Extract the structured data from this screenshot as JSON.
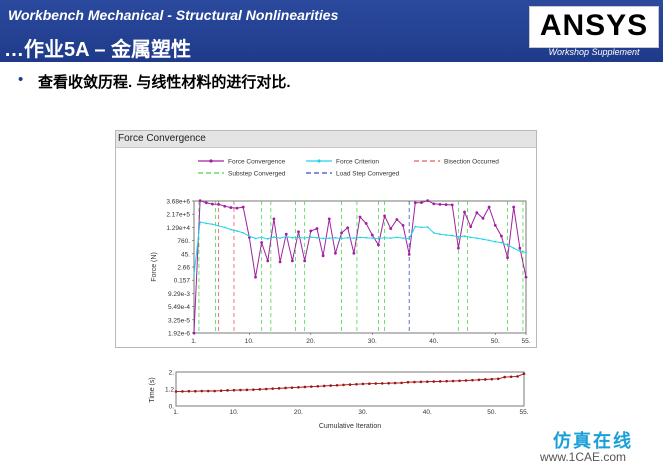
{
  "header": {
    "title_line1": "Workbench Mechanical -  Structural Nonlinearities",
    "title_line2": "…作业5A – 金属塑性",
    "logo": "ANSYS",
    "logo_sub": "Workshop Supplement"
  },
  "bullet": {
    "text": "查看收敛历程. 与线性材料的进行对比."
  },
  "panel": {
    "title": "Force Convergence"
  },
  "colors": {
    "header_bg": "#1f3a8a",
    "force_convergence": "#a0219f",
    "force_criterion": "#22d4e6",
    "bisection": "#e85c5c",
    "substep": "#4cd64c",
    "load_step": "#3a4ac8",
    "time_series": "#a01414"
  },
  "chart_data": [
    {
      "type": "line",
      "legend": [
        "Force Convergence",
        "Force Criterion",
        "Bisection Occurred",
        "Substep Converged",
        "Load Step Converged"
      ],
      "ylabel": "Force (N)",
      "xlabel": "",
      "y_ticks": [
        "3.68e+6",
        "2.17e+5",
        "1.29e+4",
        "760.",
        "45.",
        "2.66",
        "0.157",
        "9.29e-3",
        "5.49e-4",
        "3.25e-5",
        "1.92e-6"
      ],
      "x_ticks": [
        "1.",
        "10.",
        "20.",
        "30.",
        "40.",
        "50.",
        "55."
      ],
      "xlim": [
        1,
        55
      ],
      "y_scale": "log",
      "ylim": [
        1.92e-06,
        3680000.0
      ],
      "series": [
        {
          "name": "Force Convergence",
          "x": [
            1,
            2,
            3,
            4,
            5,
            6,
            7,
            8,
            9,
            10,
            11,
            12,
            13,
            14,
            15,
            16,
            17,
            18,
            19,
            20,
            21,
            22,
            23,
            24,
            25,
            26,
            27,
            28,
            29,
            30,
            31,
            32,
            33,
            34,
            35,
            36,
            37,
            38,
            39,
            40,
            41,
            42,
            43,
            44,
            45,
            46,
            47,
            48,
            49,
            50,
            51,
            52,
            53,
            54,
            55
          ],
          "values": [
            1.92e-06,
            4000000.0,
            2500000.0,
            1900000.0,
            1800000.0,
            1200000.0,
            900000.0,
            800000.0,
            1000000.0,
            1500.0,
            0.3,
            500,
            10,
            80000.0,
            8,
            3000.0,
            10,
            5000.0,
            10,
            6000.0,
            10000.0,
            30,
            80000.0,
            50,
            4000.0,
            12000.0,
            50,
            120000.0,
            30000.0,
            2500.0,
            300,
            150000.0,
            10000.0,
            70000.0,
            20000.0,
            40,
            2500000.0,
            2600000.0,
            4000000.0,
            2000000.0,
            1800000.0,
            1700000.0,
            1600000.0,
            150,
            350000.0,
            15000.0,
            300000.0,
            90000.0,
            1000000.0,
            20000.0,
            2000.0,
            20,
            1000000.0,
            150,
            0.3
          ]
        },
        {
          "name": "Force Criterion",
          "x": [
            1,
            2,
            3,
            4,
            5,
            6,
            7,
            8,
            9,
            10,
            11,
            12,
            13,
            14,
            15,
            16,
            17,
            18,
            19,
            20,
            21,
            22,
            23,
            24,
            25,
            26,
            27,
            28,
            29,
            30,
            31,
            32,
            33,
            34,
            35,
            36,
            37,
            38,
            39,
            40,
            41,
            42,
            43,
            44,
            45,
            46,
            47,
            48,
            49,
            50,
            51,
            52,
            53,
            54,
            55
          ],
          "values": [
            0.5,
            40000.0,
            30000.0,
            25000.0,
            18000.0,
            13000.0,
            8000.0,
            6000.0,
            4000.0,
            2000.0,
            1200.0,
            1500.0,
            1100.0,
            1600.0,
            1300.0,
            1800.0,
            1400.0,
            1500.0,
            1300.0,
            1600.0,
            1400.0,
            1200.0,
            1300.0,
            1400.0,
            1200.0,
            1400.0,
            1300.0,
            1500.0,
            1400.0,
            1300.0,
            1200.0,
            1400.0,
            1300.0,
            1500.0,
            1300.0,
            1200.0,
            15000.0,
            13000.0,
            14000.0,
            4000.0,
            3000.0,
            2500.0,
            2200.0,
            1800.0,
            2000.0,
            1500.0,
            1300.0,
            1000.0,
            800,
            600,
            500,
            300,
            150,
            80,
            60
          ]
        }
      ],
      "bisections": [
        5,
        7.5
      ],
      "substeps": [
        1.8,
        4.5,
        12,
        13.5,
        17.5,
        19,
        25,
        27.5,
        31,
        32,
        44,
        45.5,
        52,
        54.5
      ],
      "load_steps": [
        36
      ]
    },
    {
      "type": "line",
      "ylabel": "Time (s)",
      "xlabel": "Cumulative Iteration",
      "y_ticks": [
        "2.",
        "1.2",
        "0."
      ],
      "x_ticks": [
        "1.",
        "10.",
        "20.",
        "30.",
        "40.",
        "50.",
        "55."
      ],
      "xlim": [
        1,
        55
      ],
      "ylim": [
        0,
        2
      ],
      "series": [
        {
          "name": "Time",
          "x": [
            1,
            2,
            3,
            4,
            5,
            6,
            7,
            8,
            9,
            10,
            11,
            12,
            13,
            14,
            15,
            16,
            17,
            18,
            19,
            20,
            21,
            22,
            23,
            24,
            25,
            26,
            27,
            28,
            29,
            30,
            31,
            32,
            33,
            34,
            35,
            36,
            37,
            38,
            39,
            40,
            41,
            42,
            43,
            44,
            45,
            46,
            47,
            48,
            49,
            50,
            51,
            52,
            53,
            54,
            55
          ],
          "values": [
            0.85,
            0.86,
            0.87,
            0.87,
            0.88,
            0.88,
            0.88,
            0.9,
            0.92,
            0.93,
            0.94,
            0.95,
            0.96,
            0.98,
            1.0,
            1.02,
            1.04,
            1.06,
            1.08,
            1.1,
            1.12,
            1.14,
            1.16,
            1.18,
            1.2,
            1.22,
            1.24,
            1.26,
            1.28,
            1.3,
            1.31,
            1.32,
            1.33,
            1.34,
            1.35,
            1.36,
            1.4,
            1.41,
            1.42,
            1.43,
            1.44,
            1.45,
            1.46,
            1.47,
            1.48,
            1.5,
            1.52,
            1.54,
            1.56,
            1.58,
            1.6,
            1.7,
            1.72,
            1.74,
            1.9
          ]
        }
      ]
    }
  ],
  "watermark": {
    "text1": "仿真在线",
    "text2": "www.1CAE.com"
  }
}
